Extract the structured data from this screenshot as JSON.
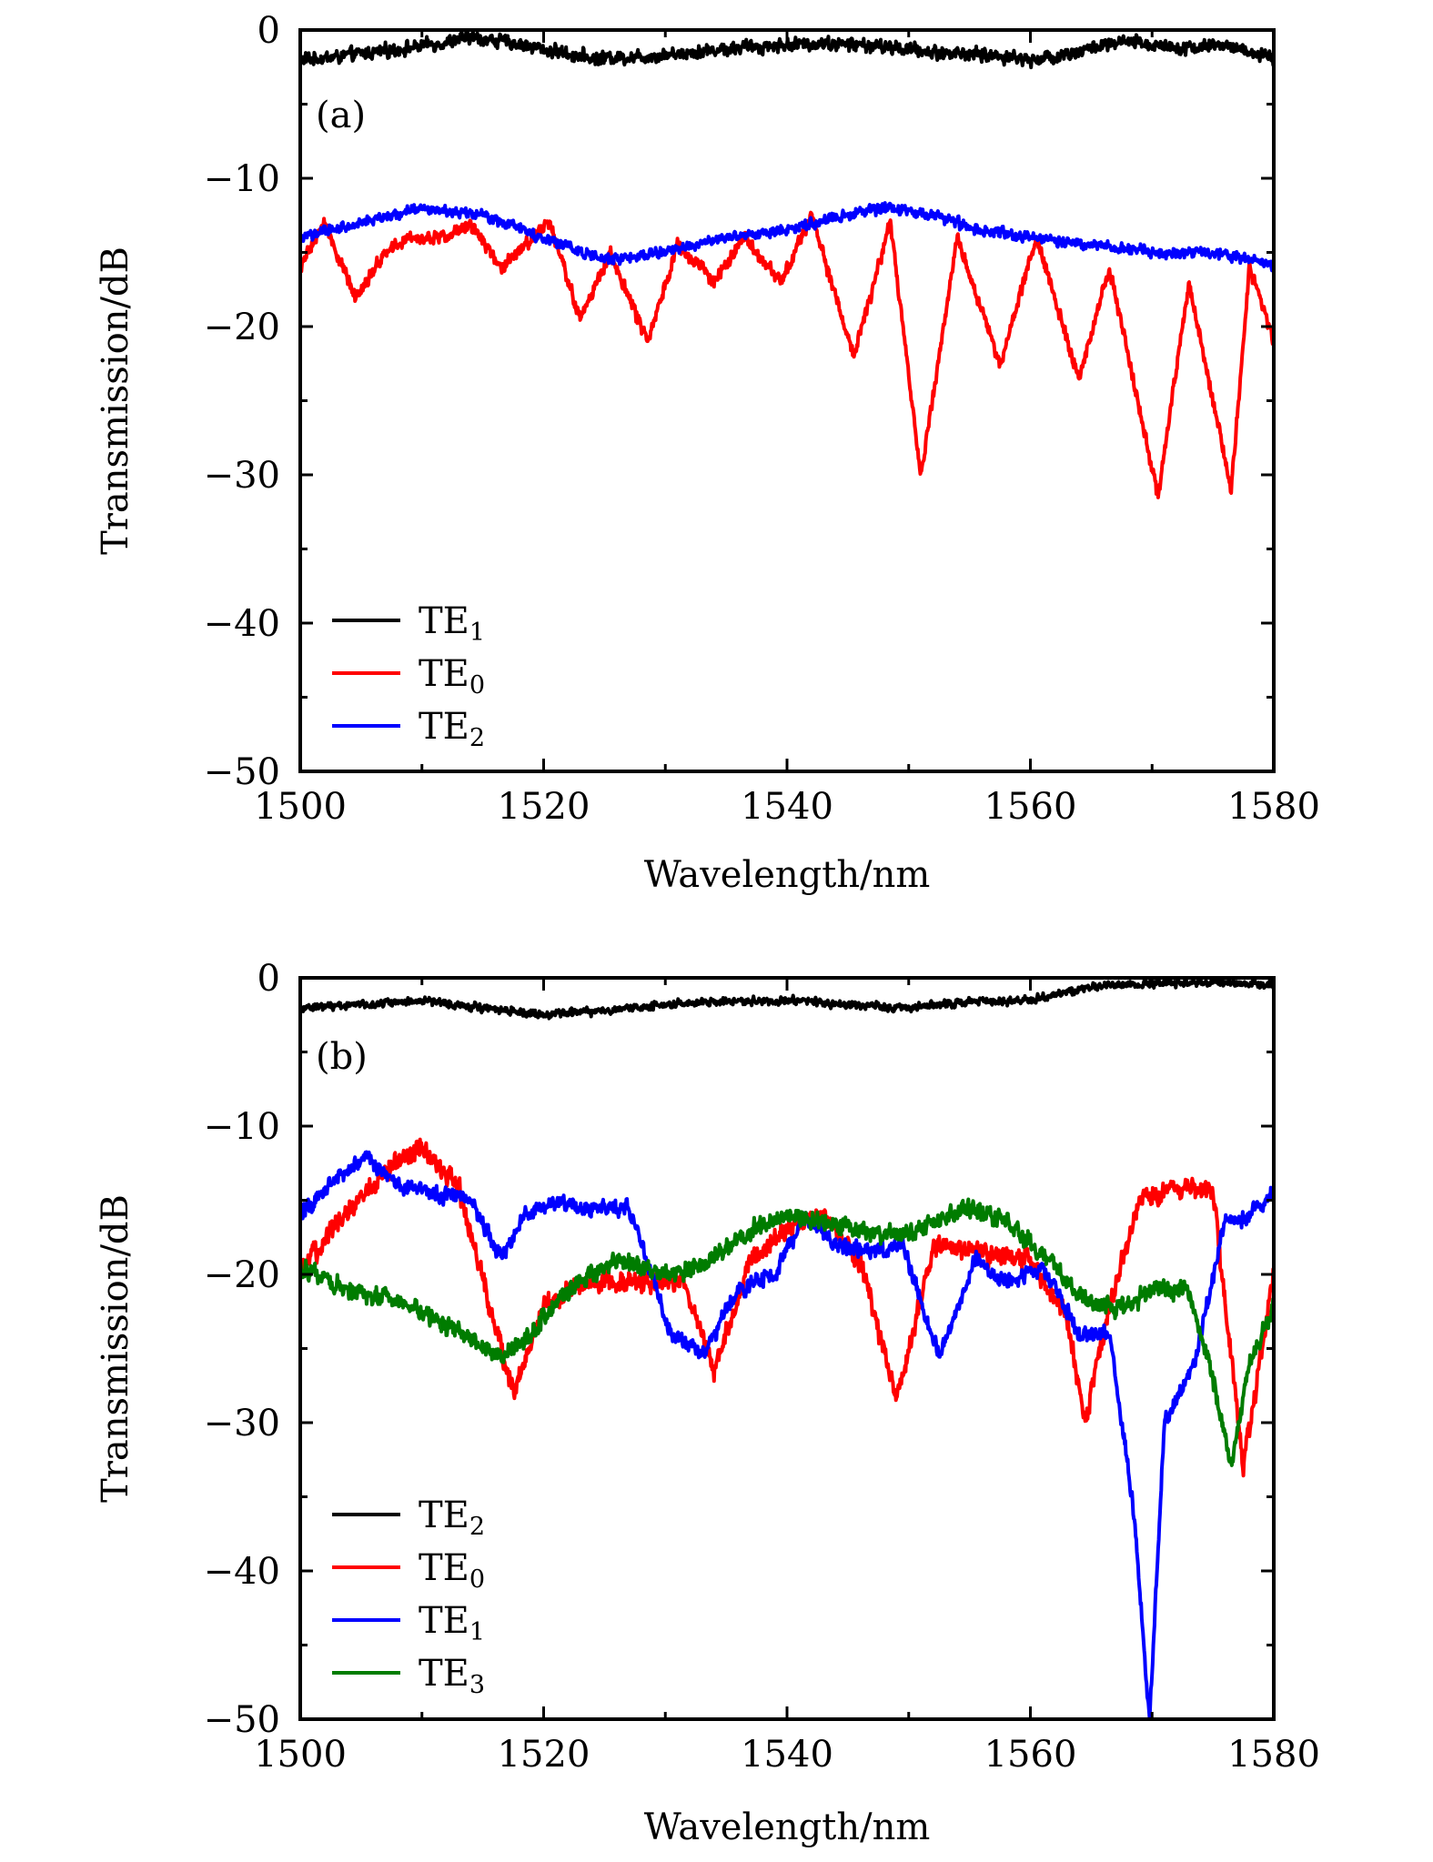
{
  "chart_data": [
    {
      "type": "line",
      "panel_label": "(a)",
      "xlabel": "Wavelength/nm",
      "ylabel": "Transmission/dB",
      "xlim": [
        1500,
        1580
      ],
      "ylim": [
        -50,
        0
      ],
      "xticks": [
        1500,
        1520,
        1540,
        1560,
        1580
      ],
      "yticks": [
        0,
        -10,
        -20,
        -30,
        -40,
        -50
      ],
      "legend_position": "bottom-left",
      "series": [
        {
          "name": "TE1",
          "label_base": "TE",
          "label_sub": "1",
          "color": "#000000",
          "noise": 0.5,
          "x": [
            1500,
            1503,
            1506,
            1509,
            1512,
            1514,
            1517,
            1520,
            1524,
            1528,
            1532,
            1536,
            1540,
            1543,
            1546,
            1549,
            1552,
            1555,
            1558,
            1560,
            1562,
            1565,
            1568,
            1570,
            1573,
            1576,
            1578,
            1580
          ],
          "y": [
            -2,
            -1.8,
            -1.5,
            -1.2,
            -0.8,
            -0.5,
            -0.8,
            -1.3,
            -1.9,
            -1.8,
            -1.5,
            -1.2,
            -1.0,
            -0.9,
            -1.0,
            -1.2,
            -1.5,
            -1.6,
            -1.8,
            -2.0,
            -1.8,
            -1.2,
            -0.8,
            -1.0,
            -1.2,
            -1.0,
            -1.5,
            -2.0
          ]
        },
        {
          "name": "TE0",
          "label_base": "TE",
          "label_sub": "0",
          "color": "#ff0000",
          "noise": 0.5,
          "x": [
            1500,
            1502,
            1504.5,
            1507,
            1509,
            1512,
            1514,
            1516.5,
            1519,
            1520.5,
            1523,
            1525.5,
            1528.5,
            1531,
            1534,
            1536.5,
            1539.5,
            1542,
            1545.5,
            1548.5,
            1551,
            1554,
            1557.5,
            1560.5,
            1564,
            1566.5,
            1570.5,
            1573,
            1576.5,
            1578,
            1580
          ],
          "y": [
            -16,
            -13,
            -18,
            -15,
            -14,
            -14,
            -13,
            -16,
            -14,
            -13,
            -19.5,
            -15,
            -21,
            -14.5,
            -17,
            -14,
            -17,
            -12.5,
            -22,
            -13,
            -30,
            -14,
            -22.5,
            -14,
            -23.5,
            -16,
            -31.5,
            -17,
            -31,
            -16,
            -21
          ]
        },
        {
          "name": "TE2",
          "label_base": "TE",
          "label_sub": "2",
          "color": "#0000ff",
          "noise": 0.4,
          "x": [
            1500,
            1505,
            1510,
            1515,
            1520,
            1525,
            1530,
            1535,
            1540,
            1545,
            1548,
            1552,
            1556,
            1560,
            1565,
            1570,
            1575,
            1578,
            1580
          ],
          "y": [
            -14,
            -13,
            -12,
            -12.5,
            -14,
            -15.5,
            -15,
            -14,
            -13.5,
            -12.5,
            -12,
            -12.5,
            -13.5,
            -14,
            -14.5,
            -15,
            -15,
            -15.5,
            -16
          ]
        }
      ]
    },
    {
      "type": "line",
      "panel_label": "(b)",
      "xlabel": "Wavelength/nm",
      "ylabel": "Transmission/dB",
      "xlim": [
        1500,
        1580
      ],
      "ylim": [
        -50,
        0
      ],
      "xticks": [
        1500,
        1520,
        1540,
        1560,
        1580
      ],
      "yticks": [
        0,
        -10,
        -20,
        -30,
        -40,
        -50
      ],
      "legend_position": "bottom-left",
      "series": [
        {
          "name": "TE2",
          "label_base": "TE",
          "label_sub": "2",
          "color": "#000000",
          "noise": 0.3,
          "x": [
            1500,
            1505,
            1510,
            1515,
            1520,
            1525,
            1530,
            1535,
            1540,
            1545,
            1550,
            1555,
            1560,
            1563,
            1566,
            1570,
            1575,
            1580
          ],
          "y": [
            -2,
            -1.8,
            -1.5,
            -2.0,
            -2.5,
            -2.2,
            -1.8,
            -1.6,
            -1.5,
            -1.8,
            -2.0,
            -1.6,
            -1.5,
            -1.0,
            -0.5,
            -0.4,
            -0.3,
            -0.5
          ]
        },
        {
          "name": "TE0",
          "label_base": "TE",
          "label_sub": "0",
          "color": "#ff0000",
          "noise": 0.8,
          "x": [
            1500,
            1503,
            1507,
            1510,
            1513,
            1515.5,
            1517.5,
            1520,
            1524,
            1528,
            1531.5,
            1534,
            1537,
            1540,
            1543,
            1546,
            1549,
            1552,
            1556,
            1560,
            1563,
            1564.5,
            1566.5,
            1569,
            1572,
            1575,
            1577.5,
            1580
          ],
          "y": [
            -20,
            -16.5,
            -13,
            -11.5,
            -14,
            -22,
            -28,
            -22,
            -20.5,
            -20.5,
            -20.5,
            -26.5,
            -19,
            -17,
            -16,
            -19,
            -28.5,
            -18,
            -18.5,
            -19,
            -23,
            -30,
            -22,
            -15,
            -14,
            -14.5,
            -33,
            -20
          ]
        },
        {
          "name": "TE1",
          "label_base": "TE",
          "label_sub": "1",
          "color": "#0000ff",
          "noise": 0.6,
          "x": [
            1500,
            1503,
            1505.5,
            1508,
            1511,
            1514,
            1516.5,
            1518.5,
            1521,
            1524,
            1527,
            1530.5,
            1533,
            1536,
            1539,
            1541.5,
            1544,
            1547,
            1549.5,
            1552.5,
            1555.5,
            1558,
            1561,
            1564,
            1566.5,
            1568.5,
            1569.8,
            1571,
            1573.5,
            1576,
            1578,
            1580
          ],
          "y": [
            -16,
            -13.5,
            -12,
            -14,
            -14.5,
            -15,
            -19,
            -16,
            -15,
            -15.5,
            -15.5,
            -24,
            -25.5,
            -21,
            -20,
            -16,
            -18,
            -18.5,
            -18,
            -25.5,
            -19,
            -20.5,
            -19.5,
            -24,
            -24,
            -36,
            -50,
            -30,
            -26,
            -16.5,
            -16,
            -14.5
          ]
        },
        {
          "name": "TE3",
          "label_base": "TE",
          "label_sub": "3",
          "color": "#007c00",
          "noise": 0.7,
          "x": [
            1500,
            1504,
            1509,
            1513,
            1516.5,
            1519,
            1522,
            1526,
            1530,
            1533,
            1537,
            1540,
            1543,
            1546,
            1549,
            1552,
            1555,
            1558,
            1561,
            1564,
            1567,
            1570,
            1573,
            1575,
            1576.5,
            1578,
            1580
          ],
          "y": [
            -19.5,
            -21,
            -22,
            -24,
            -25.5,
            -24,
            -21,
            -19,
            -20,
            -19.5,
            -17,
            -16,
            -16.5,
            -17,
            -17.5,
            -16.5,
            -15.5,
            -16.5,
            -18.5,
            -21.5,
            -22.5,
            -21,
            -21,
            -27,
            -33,
            -26,
            -22
          ]
        }
      ]
    }
  ]
}
